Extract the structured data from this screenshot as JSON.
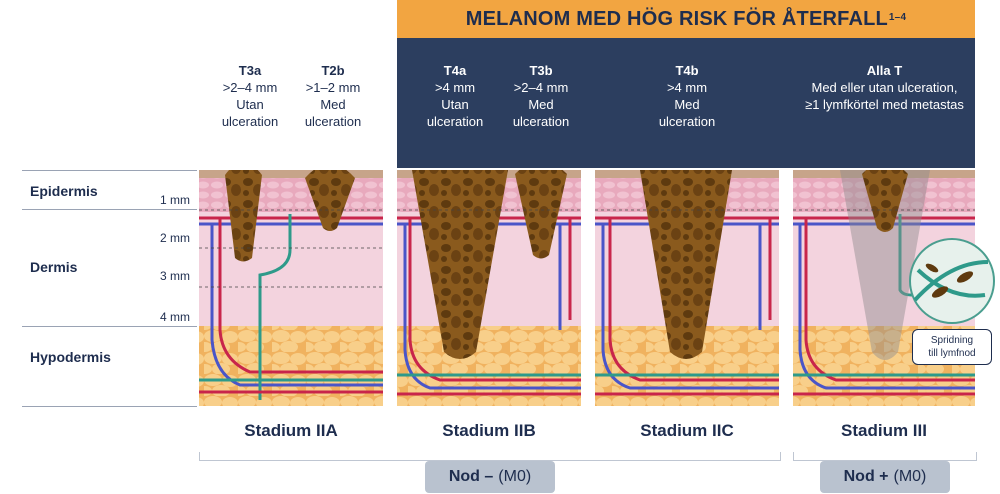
{
  "title": "MELANOM MED HÖG RISK FÖR ÅTERFALL",
  "title_superscript": "1–4",
  "layers": [
    {
      "name": "Epidermis"
    },
    {
      "name": "Dermis"
    },
    {
      "name": "Hypodermis"
    }
  ],
  "depths": [
    "1 mm",
    "2 mm",
    "3 mm",
    "4 mm"
  ],
  "tumor_labels": [
    {
      "code": "T3a",
      "line1": ">2–4 mm",
      "line2": "Utan",
      "line3": "ulceration"
    },
    {
      "code": "T2b",
      "line1": ">1–2 mm",
      "line2": "Med",
      "line3": "ulceration"
    },
    {
      "code": "T4a",
      "line1": ">4 mm",
      "line2": "Utan",
      "line3": "ulceration"
    },
    {
      "code": "T3b",
      "line1": ">2–4 mm",
      "line2": "Med",
      "line3": "ulceration"
    },
    {
      "code": "T4b",
      "line1": ">4 mm",
      "line2": "Med",
      "line3": "ulceration"
    },
    {
      "code": "Alla T",
      "line1": "Med eller utan ulceration,",
      "line2": "≥1 lymfkörtel med metastas",
      "line3": ""
    }
  ],
  "stages": [
    "Stadium IIA",
    "Stadium IIB",
    "Stadium IIC",
    "Stadium III"
  ],
  "nodes": [
    {
      "label": "Nod –",
      "suffix": "(M0)"
    },
    {
      "label": "Nod +",
      "suffix": "(M0)"
    }
  ],
  "callout": {
    "line1": "Spridning",
    "line2": "till lymfnod"
  },
  "colors": {
    "banner": "#f2a541",
    "header_dark": "#2c3e5f",
    "text_navy": "#1e2d4e",
    "epidermis": "#e8a9bd",
    "dermis": "#f3d3de",
    "hypodermis": "#f6c77d",
    "tumor": "#7a4a17",
    "ulceration": "#d6205f",
    "node_pill": "#b9c2cf"
  }
}
